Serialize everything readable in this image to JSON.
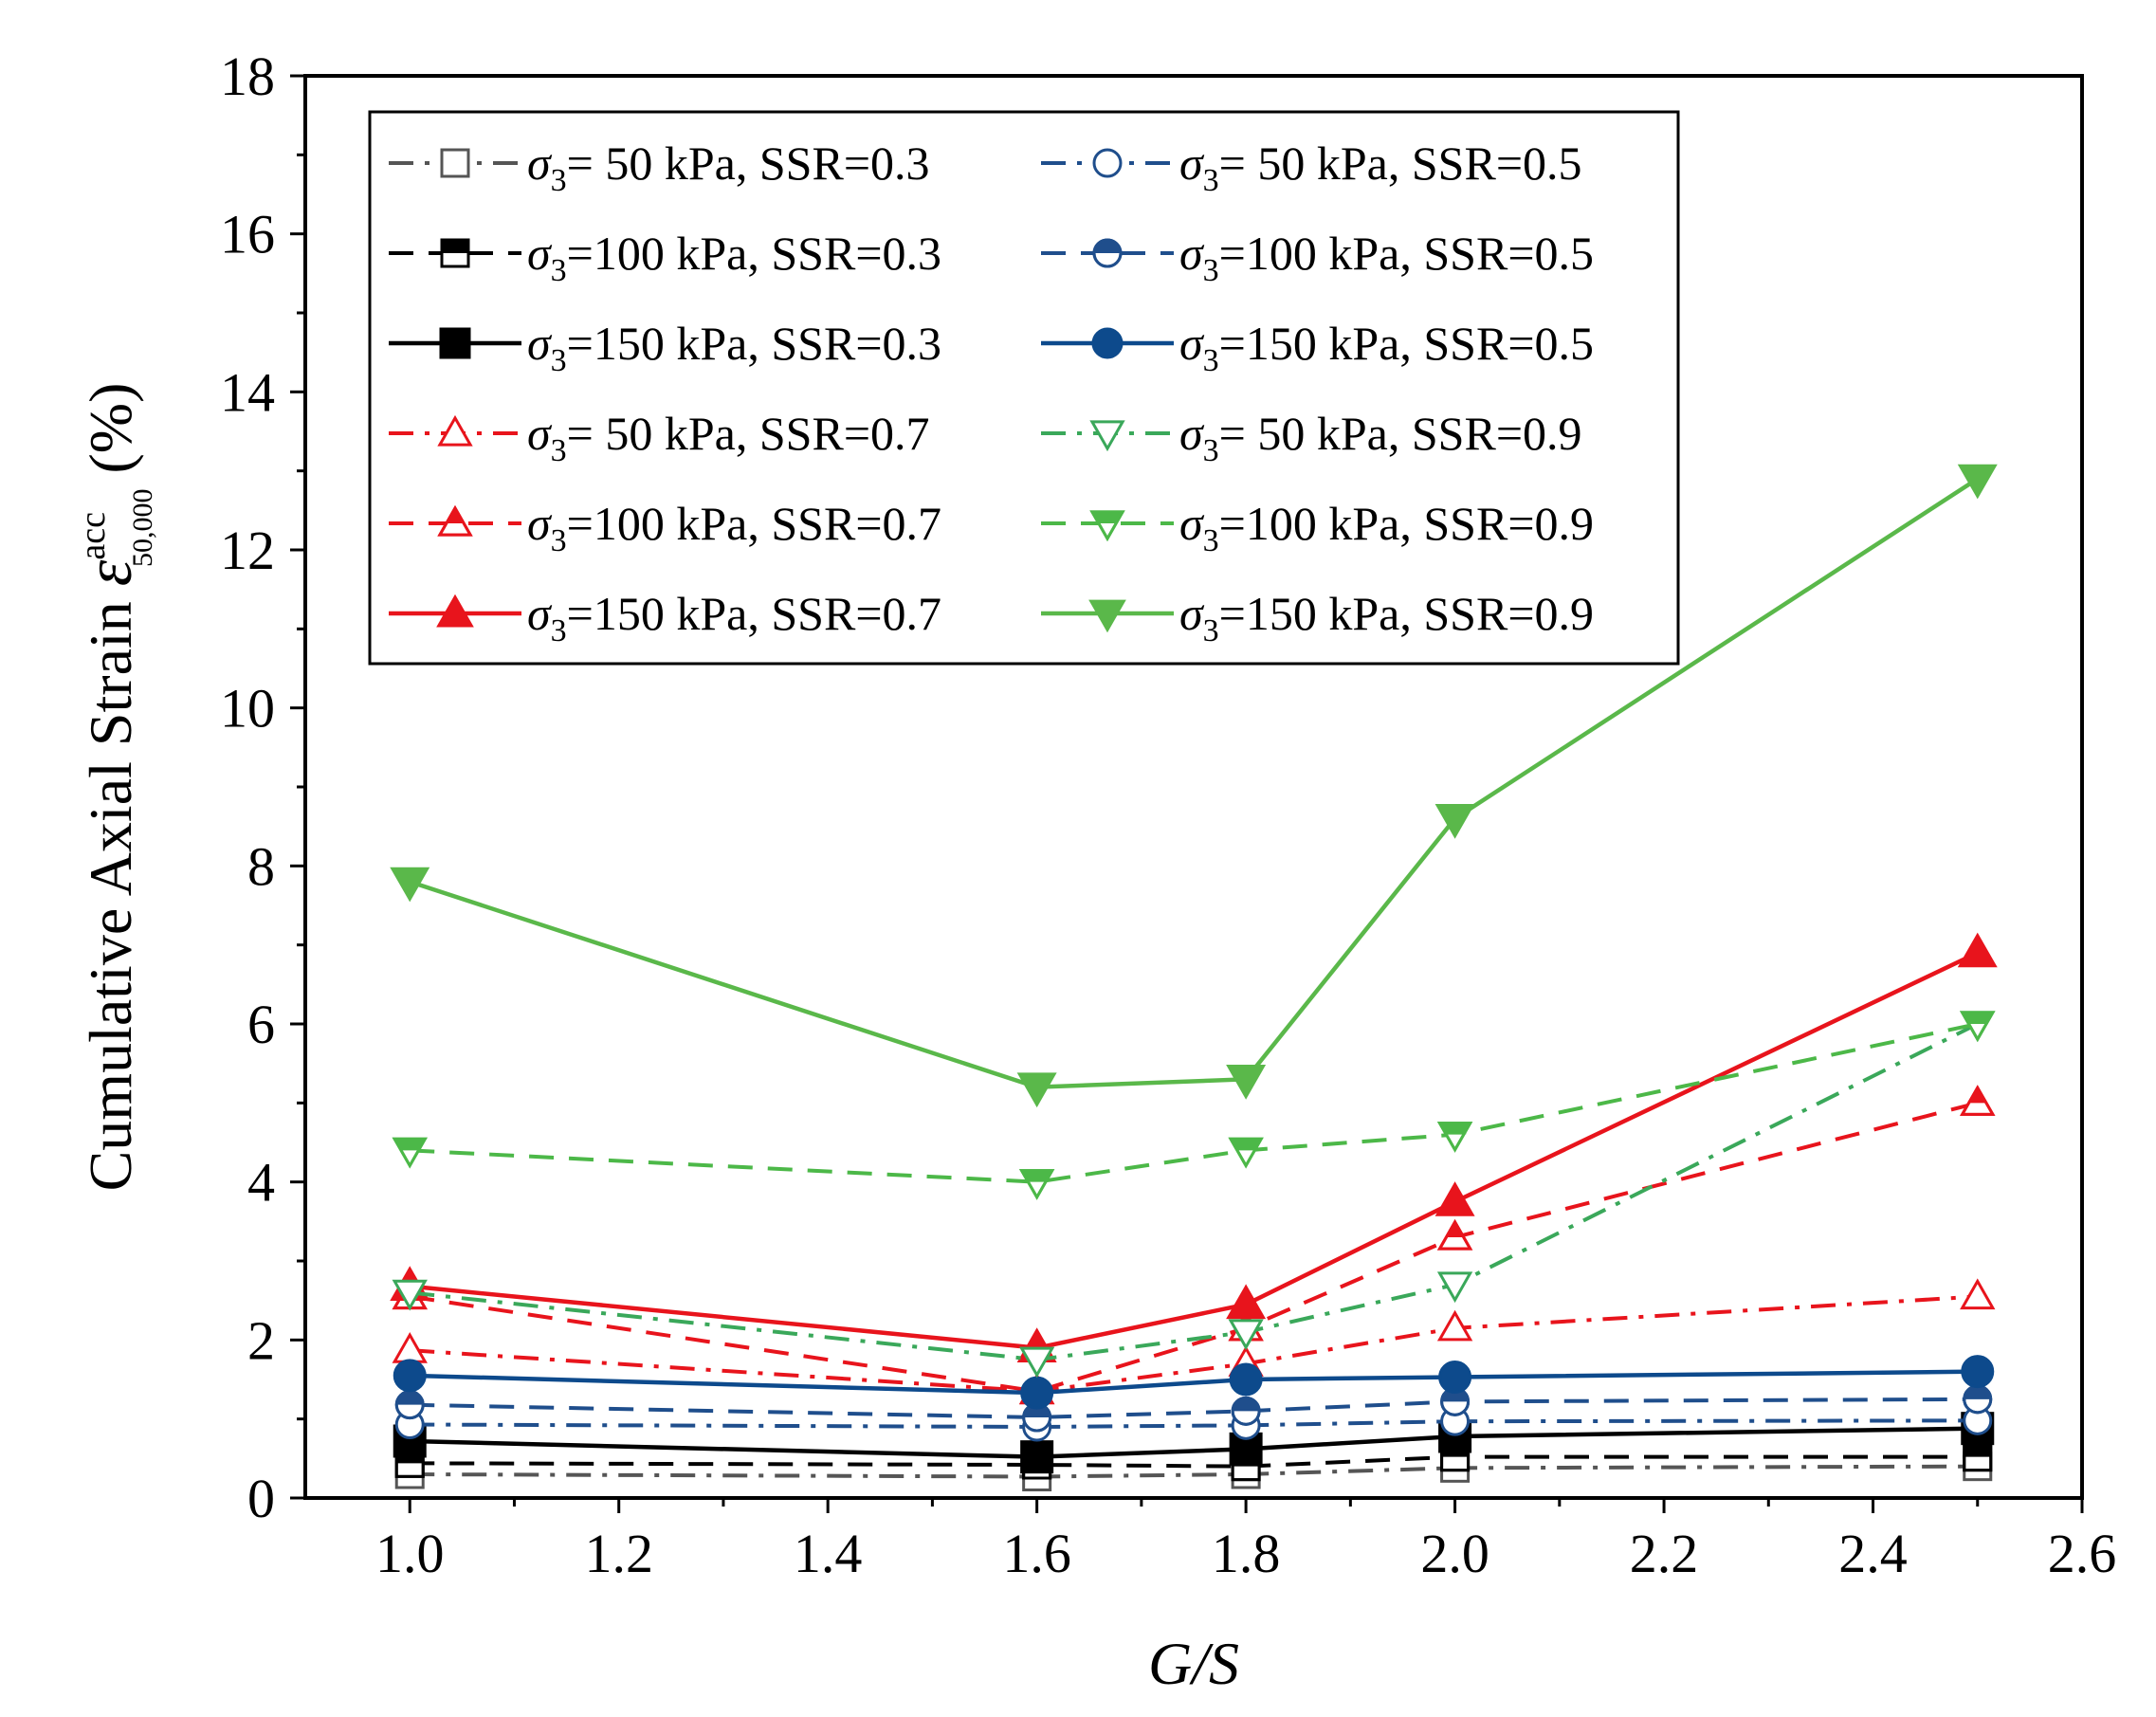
{
  "chart_data": {
    "type": "line",
    "title": "",
    "xlabel": "G/S",
    "ylabel": {
      "prefix": "Cumulative Axial Strain ",
      "symbol": "ε",
      "superscript": "acc",
      "subscript": "50,000",
      "suffix": " (%)"
    },
    "xlim": [
      0.9,
      2.6
    ],
    "ylim": [
      0,
      18
    ],
    "xticks": [
      "1.0",
      "1.2",
      "1.4",
      "1.6",
      "1.8",
      "2.0",
      "2.2",
      "2.4",
      "2.6"
    ],
    "yticks": [
      "0",
      "2",
      "4",
      "6",
      "8",
      "10",
      "12",
      "14",
      "16",
      "18"
    ],
    "x": [
      1.0,
      1.6,
      1.8,
      2.0,
      2.5
    ],
    "legend_position": "top-left",
    "series": [
      {
        "name": "σ3= 50  kPa, SSR=0.3",
        "label_parts": [
          "= 50  kPa, SSR=0.3"
        ],
        "color": "#555555",
        "dash": "dashdot",
        "marker": "square",
        "fill": "open",
        "values": [
          0.3,
          0.27,
          0.3,
          0.38,
          0.4
        ]
      },
      {
        "name": "σ3=100 kPa, SSR=0.3",
        "label_parts": [
          "=100 kPa, SSR=0.3"
        ],
        "color": "#000000",
        "dash": "dash",
        "marker": "square",
        "fill": "half",
        "values": [
          0.44,
          0.42,
          0.4,
          0.52,
          0.52
        ]
      },
      {
        "name": "σ3=150 kPa, SSR=0.3",
        "label_parts": [
          "=150 kPa, SSR=0.3"
        ],
        "color": "#000000",
        "dash": "solid",
        "marker": "square",
        "fill": "full",
        "values": [
          0.72,
          0.52,
          0.62,
          0.78,
          0.88
        ]
      },
      {
        "name": "σ3= 50 kPa, SSR=0.7",
        "label_parts": [
          "=  50 kPa, SSR=0.7"
        ],
        "color": "#e8141c",
        "dash": "dashdot",
        "marker": "triangle-up",
        "fill": "open",
        "values": [
          1.87,
          1.35,
          1.7,
          2.15,
          2.55
        ]
      },
      {
        "name": "σ3=100 kPa, SSR=0.7",
        "label_parts": [
          "=100 kPa, SSR=0.7"
        ],
        "color": "#e8141c",
        "dash": "dash",
        "marker": "triangle-up",
        "fill": "half",
        "values": [
          2.55,
          1.35,
          2.15,
          3.3,
          5.0
        ]
      },
      {
        "name": "σ3=150 kPa, SSR=0.7",
        "label_parts": [
          "=150 kPa, SSR=0.7"
        ],
        "color": "#e8141c",
        "dash": "solid",
        "marker": "triangle-up",
        "fill": "full",
        "values": [
          2.68,
          1.9,
          2.45,
          3.75,
          6.9
        ]
      },
      {
        "name": "σ3= 50 kPa, SSR=0.5",
        "label_parts": [
          "=  50 kPa, SSR=0.5"
        ],
        "color": "#1f4e8c",
        "dash": "dashdot",
        "marker": "circle",
        "fill": "open",
        "values": [
          0.93,
          0.9,
          0.92,
          0.97,
          0.98
        ]
      },
      {
        "name": "σ3=100 kPa, SSR=0.5",
        "label_parts": [
          "=100 kPa, SSR=0.5"
        ],
        "color": "#1f4e8c",
        "dash": "dash",
        "marker": "circle",
        "fill": "half",
        "values": [
          1.18,
          1.02,
          1.1,
          1.22,
          1.25
        ]
      },
      {
        "name": "σ3=150 kPa, SSR=0.5",
        "label_parts": [
          "=150 kPa, SSR=0.5"
        ],
        "color": "#0d4a8c",
        "dash": "solid",
        "marker": "circle",
        "fill": "full",
        "values": [
          1.55,
          1.33,
          1.5,
          1.53,
          1.6
        ]
      },
      {
        "name": "σ3= 50 kPa, SSR=0.9",
        "label_parts": [
          "=  50 kPa, SSR=0.9"
        ],
        "color": "#3aa85a",
        "dash": "dashdot",
        "marker": "triangle-down",
        "fill": "open",
        "values": [
          2.6,
          1.75,
          2.1,
          2.7,
          6.0
        ]
      },
      {
        "name": "σ3=100 kPa, SSR=0.9",
        "label_parts": [
          "=100 kPa, SSR=0.9"
        ],
        "color": "#4cb848",
        "dash": "dash",
        "marker": "triangle-down",
        "fill": "half",
        "values": [
          4.4,
          4.0,
          4.4,
          4.6,
          6.0
        ]
      },
      {
        "name": "σ3=150 kPa, SSR=0.9",
        "label_parts": [
          "=150 kPa, SSR=0.9"
        ],
        "color": "#5ab84a",
        "dash": "solid",
        "marker": "triangle-down",
        "fill": "full",
        "values": [
          7.8,
          5.2,
          5.3,
          8.6,
          12.9
        ]
      }
    ],
    "legend_layout": [
      [
        0,
        6
      ],
      [
        1,
        7
      ],
      [
        2,
        8
      ],
      [
        3,
        9
      ],
      [
        4,
        10
      ],
      [
        5,
        11
      ]
    ],
    "legend_symbol": "σ",
    "legend_subscript": "3"
  }
}
